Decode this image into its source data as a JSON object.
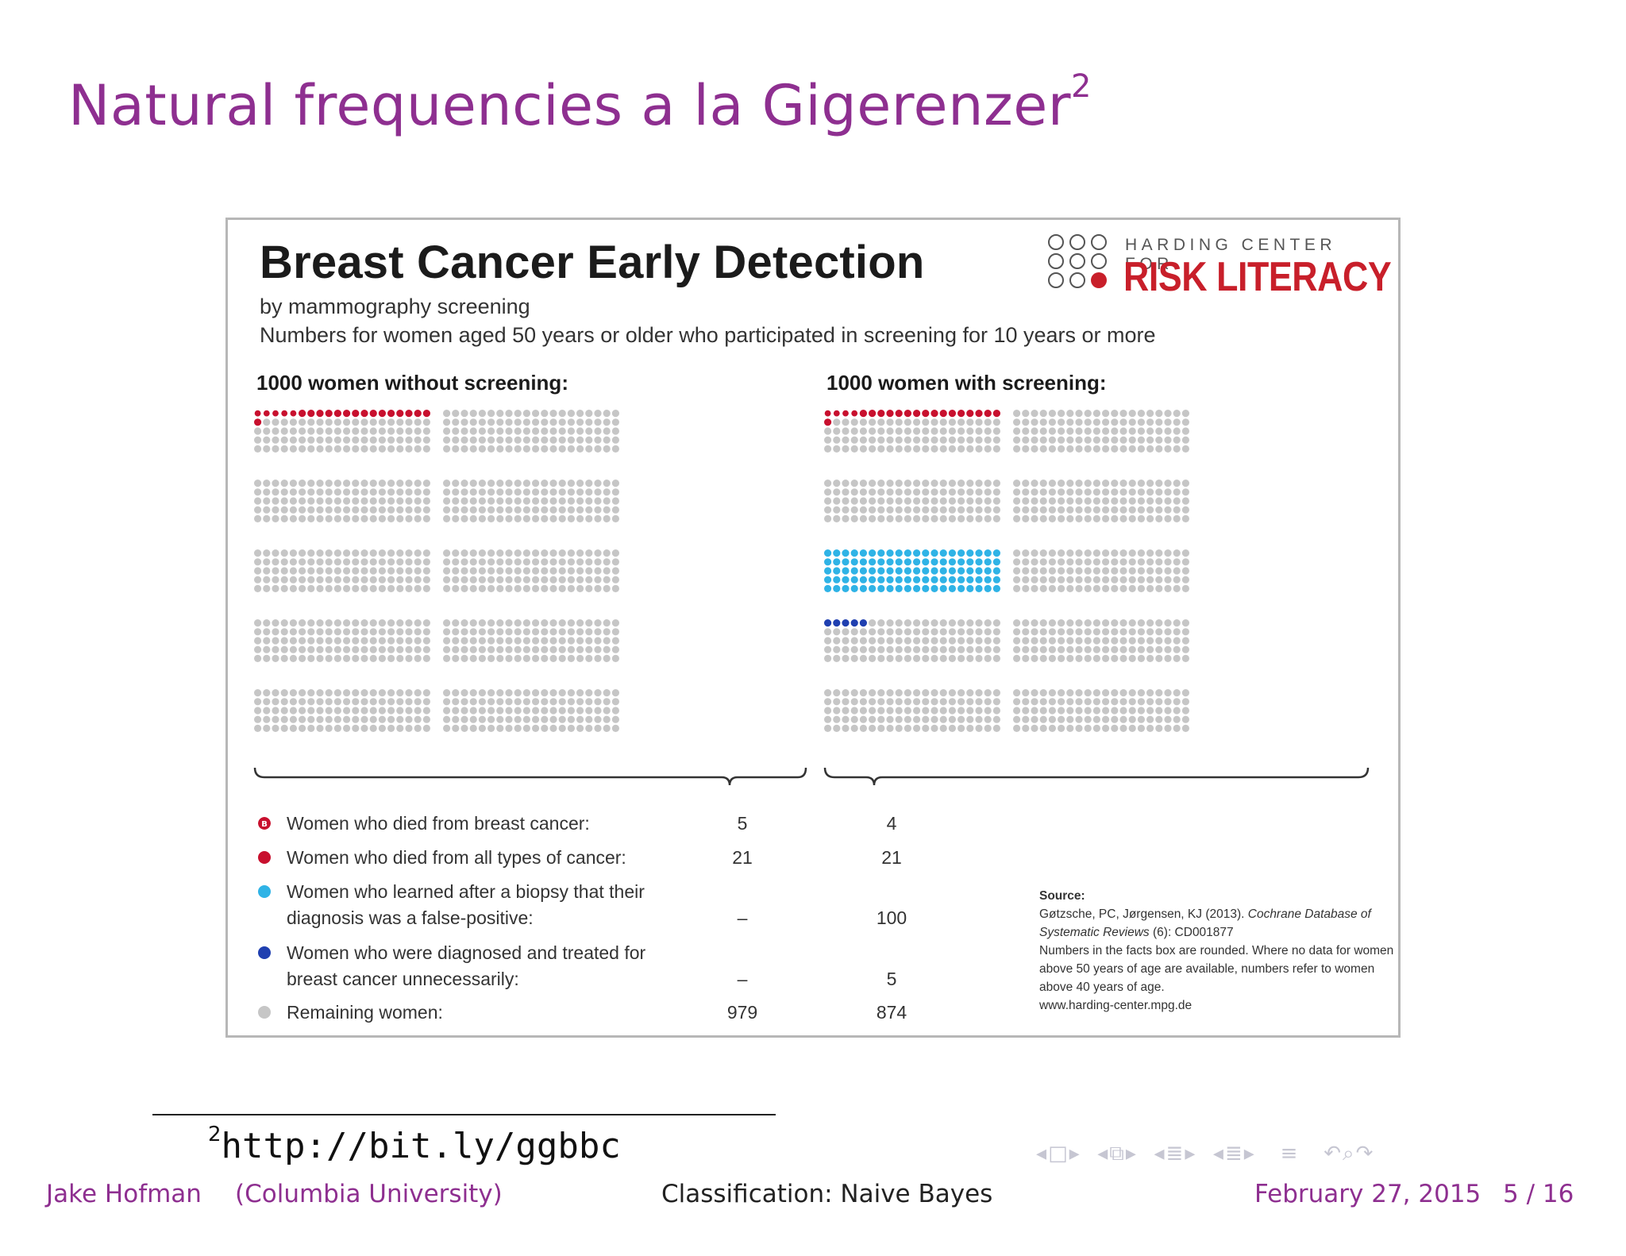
{
  "slide": {
    "title": "Natural frequencies a la Gigerenzer",
    "title_footnote_mark": "2"
  },
  "panel": {
    "title": "Breast Cancer Early Detection",
    "subtitle": "by mammography screening",
    "note": "Numbers for women aged 50 years or older who participated in screening for 10 years or more",
    "logo": {
      "top_line": "HARDING CENTER FOR",
      "bottom_line": "RISK LITERACY"
    },
    "groups": [
      {
        "heading": "1000 women without screening:",
        "counts": {
          "died_breast": 5,
          "died_all": 21,
          "false_positive": 0,
          "overdiagnosed": 0,
          "remaining": 979
        }
      },
      {
        "heading": "1000 women with screening:",
        "counts": {
          "died_breast": 4,
          "died_all": 21,
          "false_positive": 100,
          "overdiagnosed": 5,
          "remaining": 874
        }
      }
    ],
    "legend": [
      {
        "text": "Women who died from breast cancer:",
        "color": "#c8102e",
        "marked": true,
        "without": "5",
        "with": "4"
      },
      {
        "text": "Women who died from all types of cancer:",
        "color": "#c8102e",
        "marked": false,
        "without": "21",
        "with": "21"
      },
      {
        "text": "Women who learned after a biopsy that their diagnosis was a false-positive:",
        "color": "#2fb3e6",
        "marked": false,
        "without": "–",
        "with": "100"
      },
      {
        "text": "Women who were diagnosed and treated for breast cancer unnecessarily:",
        "color": "#1f3fb0",
        "marked": false,
        "without": "–",
        "with": "5"
      },
      {
        "text": "Remaining women:",
        "color": "#c6c6c6",
        "marked": false,
        "without": "979",
        "with": "874"
      }
    ],
    "source": {
      "heading": "Source:",
      "line1_plain": "Gøtzsche, PC, Jørgensen, KJ (2013). ",
      "line1_italic": "Cochrane Database of Systematic Reviews",
      "line1_tail": " (6): CD001877",
      "line2": "Numbers in the facts box are rounded. Where no data for women above 50 years of age are available, numbers refer to women above 40 years of age.",
      "url": "www.harding-center.mpg.de"
    },
    "colors": {
      "breast_cancer_death": "#c8102e",
      "false_positive": "#2fb3e6",
      "overdiagnosis": "#1f3fb0",
      "remaining": "#c6c6c6"
    }
  },
  "footnote": {
    "mark": "2",
    "url": "http://bit.ly/ggbbc"
  },
  "footer": {
    "author": "Jake Hofman",
    "institution": "(Columbia University)",
    "talk_title": "Classification: Naive Bayes",
    "date": "February 27, 2015",
    "page": "5 / 16"
  },
  "nav_icons": [
    "nav-prev-frame-icon",
    "nav-next-frame-icon",
    "nav-prev-subsection-icon",
    "nav-next-subsection-icon",
    "nav-prev-section-icon",
    "nav-next-section-icon",
    "nav-toc-icon",
    "nav-back-icon",
    "nav-search-icon",
    "nav-forward-icon"
  ]
}
